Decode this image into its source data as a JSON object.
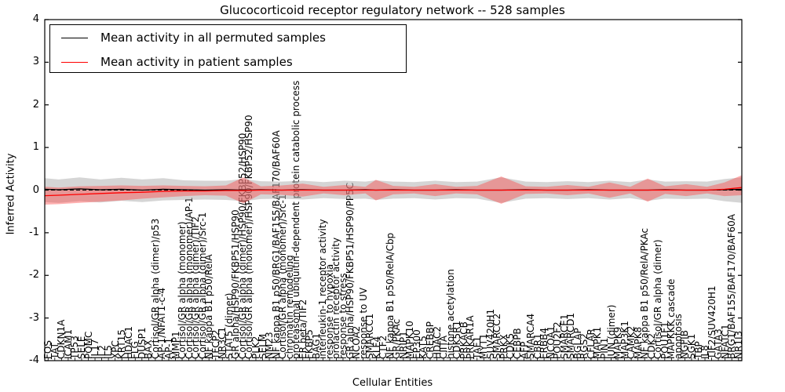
{
  "title": "Glucocorticoid receptor regulatory network -- 528 samples",
  "legend": {
    "entries": [
      {
        "label": "Mean activity in all permuted samples",
        "color": "#000000"
      },
      {
        "label": "Mean activity in patient samples",
        "color": "#ff0000"
      }
    ]
  },
  "axes": {
    "ylabel": "Inferred Activity",
    "xlabel": "Cellular Entities",
    "yticks": [
      4,
      3,
      2,
      1,
      0,
      -1,
      -2,
      -3,
      -4
    ],
    "ylim": [
      -4,
      4
    ]
  },
  "colors": {
    "permuted_line": "#000000",
    "permuted_band": "#b3b3b3",
    "patient_line": "#ff0000",
    "patient_band": "#ff3a3a",
    "zero_line": "#000000",
    "spine": "#000000"
  },
  "chart_data": {
    "type": "line",
    "title": "Glucocorticoid receptor regulatory network -- 528 samples",
    "xlabel": "Cellular Entities",
    "ylabel": "Inferred Activity",
    "ylim": [
      -4,
      4
    ],
    "legend_position": "upper left",
    "grid": false,
    "zero_line_style": "dashed",
    "x_categories": [
      "FOS",
      "TAT",
      "CDKN1A",
      "ICAM1",
      "TP53",
      "SELE",
      "POMC",
      "IL17",
      "IL2",
      "IL5",
      "XPC",
      "KRT15",
      "HDAC1",
      "FLG",
      "DUSP1",
      "BAX",
      "Cortisol/GR alpha (dimer)/p53",
      "AP-1/NFAT1-c-4",
      "AP-1",
      "MMP1",
      "Cortisol/GR alpha (monomer)",
      "Cortisol/GR alpha (monomer)/AP-1",
      "Cortisol/GR alpha (dimer)/TIF2",
      "Cortisol/GR alpha (dimer)/Src-1",
      "NF kappa B1 p50/RelA",
      "TFCP2",
      "NR3C1",
      "STAT5 (dimer)",
      "GR alpha/HSP90/FKBP51/HSP90",
      "Cortisol/GR alpha (dimer)/HSP90/FKBP52/HSP90",
      "Cortisol/GR alpha (monomer)/HSP90/FKBP52/HSP90",
      "PLK2",
      "SELM",
      "NM23",
      "NF kappa B1 p50/BRG1/BAF155/BAF170/BAF60A",
      "Cortisol/GR alpha (monomer)/Src-1",
      "chromatin remodeling",
      "proteasomal ubiquitin-dependent protein catabolic process",
      "ER beta/TIF2",
      "FKBP5",
      "BAG1",
      "interleukin-1 receptor activity",
      "response to hypoxia",
      "prolactin receptor activity",
      "response to stress",
      "GR alpha/HSP90/FKBP51/HSP90/PP5C",
      "NCOA2",
      "response to UV",
      "SMARCC1",
      "KLF4",
      "CTF2",
      "NF kappa B1 p50/RelA/Cbp",
      "GR/PKAc",
      "NRIP1",
      "MAPK10",
      "EP300",
      "KAT5",
      "CREBBP",
      "HDAC2",
      "CIITA",
      "histone acetylation",
      "CDK5R1",
      "PRKACB",
      "PRKAR1A",
      "TAF1",
      "MYT1",
      "SUV420H1",
      "SMARCC2",
      "PRKX",
      "CDK5",
      "CEBPB",
      "AFP",
      "SMARCA4",
      "CBR1",
      "ERBB4",
      "NCOA1",
      "POU2F2",
      "SMARCE1",
      "SMARCD1",
      "BGLAP",
      "RGS2",
      "CFLAR",
      "MAPK1",
      "PIN1",
      "JUN (dimer)",
      "MAPK9",
      "MAP3K1",
      "CAMK2",
      "MAPK8",
      "NF kappa B1 p50/RelA/PKAc",
      "CDK2",
      "Cortisol/GR alpha (dimer)",
      "POU1F1",
      "MAPKKK cascade",
      "apoptosis",
      "NGFIB",
      "SGK1",
      "TBP",
      "IL8",
      "TIF2/SUV420H1",
      "GATA3",
      "NFATC1",
      "BRG1/BAF155/BAF170/BAF60A",
      "NR1I3"
    ],
    "series": [
      {
        "name": "Mean activity in all permuted samples",
        "role": "permuted",
        "points": {
          "x": [
            0.0,
            0.02,
            0.05,
            0.08,
            0.11,
            0.14,
            0.17,
            0.2,
            0.23,
            0.26,
            0.285,
            0.31,
            0.34,
            0.37,
            0.4,
            0.43,
            0.46,
            0.475,
            0.5,
            0.53,
            0.56,
            0.59,
            0.62,
            0.655,
            0.69,
            0.72,
            0.75,
            0.78,
            0.81,
            0.84,
            0.865,
            0.89,
            0.92,
            0.95,
            0.975,
            1.0
          ],
          "mean": [
            0.02,
            0.01,
            0.03,
            0.01,
            0.02,
            0.0,
            0.02,
            0.01,
            0.0,
            0.01,
            0.0,
            0.01,
            0.0,
            0.01,
            0.0,
            0.0,
            0.01,
            0.0,
            0.01,
            0.0,
            0.0,
            0.01,
            0.0,
            0.0,
            0.01,
            0.0,
            0.0,
            0.01,
            0.0,
            0.0,
            0.0,
            0.01,
            0.0,
            0.0,
            0.01,
            0.02
          ],
          "hi": [
            0.28,
            0.25,
            0.3,
            0.25,
            0.29,
            0.25,
            0.28,
            0.23,
            0.22,
            0.22,
            0.26,
            0.21,
            0.2,
            0.22,
            0.19,
            0.22,
            0.2,
            0.23,
            0.2,
            0.19,
            0.22,
            0.19,
            0.2,
            0.3,
            0.2,
            0.19,
            0.21,
            0.19,
            0.22,
            0.19,
            0.25,
            0.2,
            0.21,
            0.2,
            0.26,
            0.3
          ],
          "lo": [
            -0.28,
            -0.3,
            -0.26,
            -0.29,
            -0.25,
            -0.28,
            -0.24,
            -0.23,
            -0.22,
            -0.23,
            -0.26,
            -0.21,
            -0.2,
            -0.22,
            -0.19,
            -0.21,
            -0.2,
            -0.23,
            -0.2,
            -0.19,
            -0.22,
            -0.19,
            -0.2,
            -0.3,
            -0.2,
            -0.19,
            -0.21,
            -0.19,
            -0.22,
            -0.19,
            -0.25,
            -0.2,
            -0.21,
            -0.2,
            -0.26,
            -0.3
          ]
        }
      },
      {
        "name": "Mean activity in patient samples",
        "role": "patient",
        "points": {
          "x": [
            0.0,
            0.02,
            0.05,
            0.08,
            0.11,
            0.14,
            0.17,
            0.2,
            0.23,
            0.26,
            0.285,
            0.31,
            0.34,
            0.37,
            0.4,
            0.43,
            0.46,
            0.475,
            0.5,
            0.53,
            0.56,
            0.59,
            0.62,
            0.655,
            0.69,
            0.72,
            0.75,
            0.78,
            0.81,
            0.84,
            0.865,
            0.89,
            0.92,
            0.95,
            0.975,
            1.0
          ],
          "mean": [
            -0.13,
            -0.12,
            -0.1,
            -0.08,
            -0.06,
            -0.05,
            -0.03,
            -0.02,
            -0.02,
            -0.01,
            -0.01,
            0.0,
            0.0,
            0.0,
            0.0,
            0.0,
            0.0,
            0.0,
            0.0,
            0.0,
            0.0,
            0.0,
            0.0,
            0.0,
            0.0,
            0.0,
            0.0,
            0.0,
            0.0,
            0.0,
            0.0,
            0.0,
            0.0,
            0.0,
            0.02,
            0.06
          ],
          "hi": [
            0.08,
            0.06,
            0.09,
            0.1,
            0.11,
            0.1,
            0.11,
            0.1,
            0.09,
            0.11,
            0.3,
            0.09,
            0.11,
            0.15,
            0.08,
            0.12,
            0.08,
            0.24,
            0.1,
            0.08,
            0.14,
            0.08,
            0.1,
            0.32,
            0.09,
            0.08,
            0.12,
            0.08,
            0.18,
            0.08,
            0.27,
            0.09,
            0.14,
            0.08,
            0.18,
            0.35
          ],
          "lo": [
            -0.34,
            -0.33,
            -0.3,
            -0.27,
            -0.24,
            -0.2,
            -0.17,
            -0.14,
            -0.12,
            -0.13,
            -0.31,
            -0.1,
            -0.11,
            -0.15,
            -0.08,
            -0.12,
            -0.08,
            -0.24,
            -0.1,
            -0.08,
            -0.14,
            -0.08,
            -0.1,
            -0.32,
            -0.09,
            -0.08,
            -0.12,
            -0.08,
            -0.18,
            -0.08,
            -0.27,
            -0.09,
            -0.14,
            -0.08,
            -0.14,
            -0.12
          ]
        }
      }
    ]
  }
}
